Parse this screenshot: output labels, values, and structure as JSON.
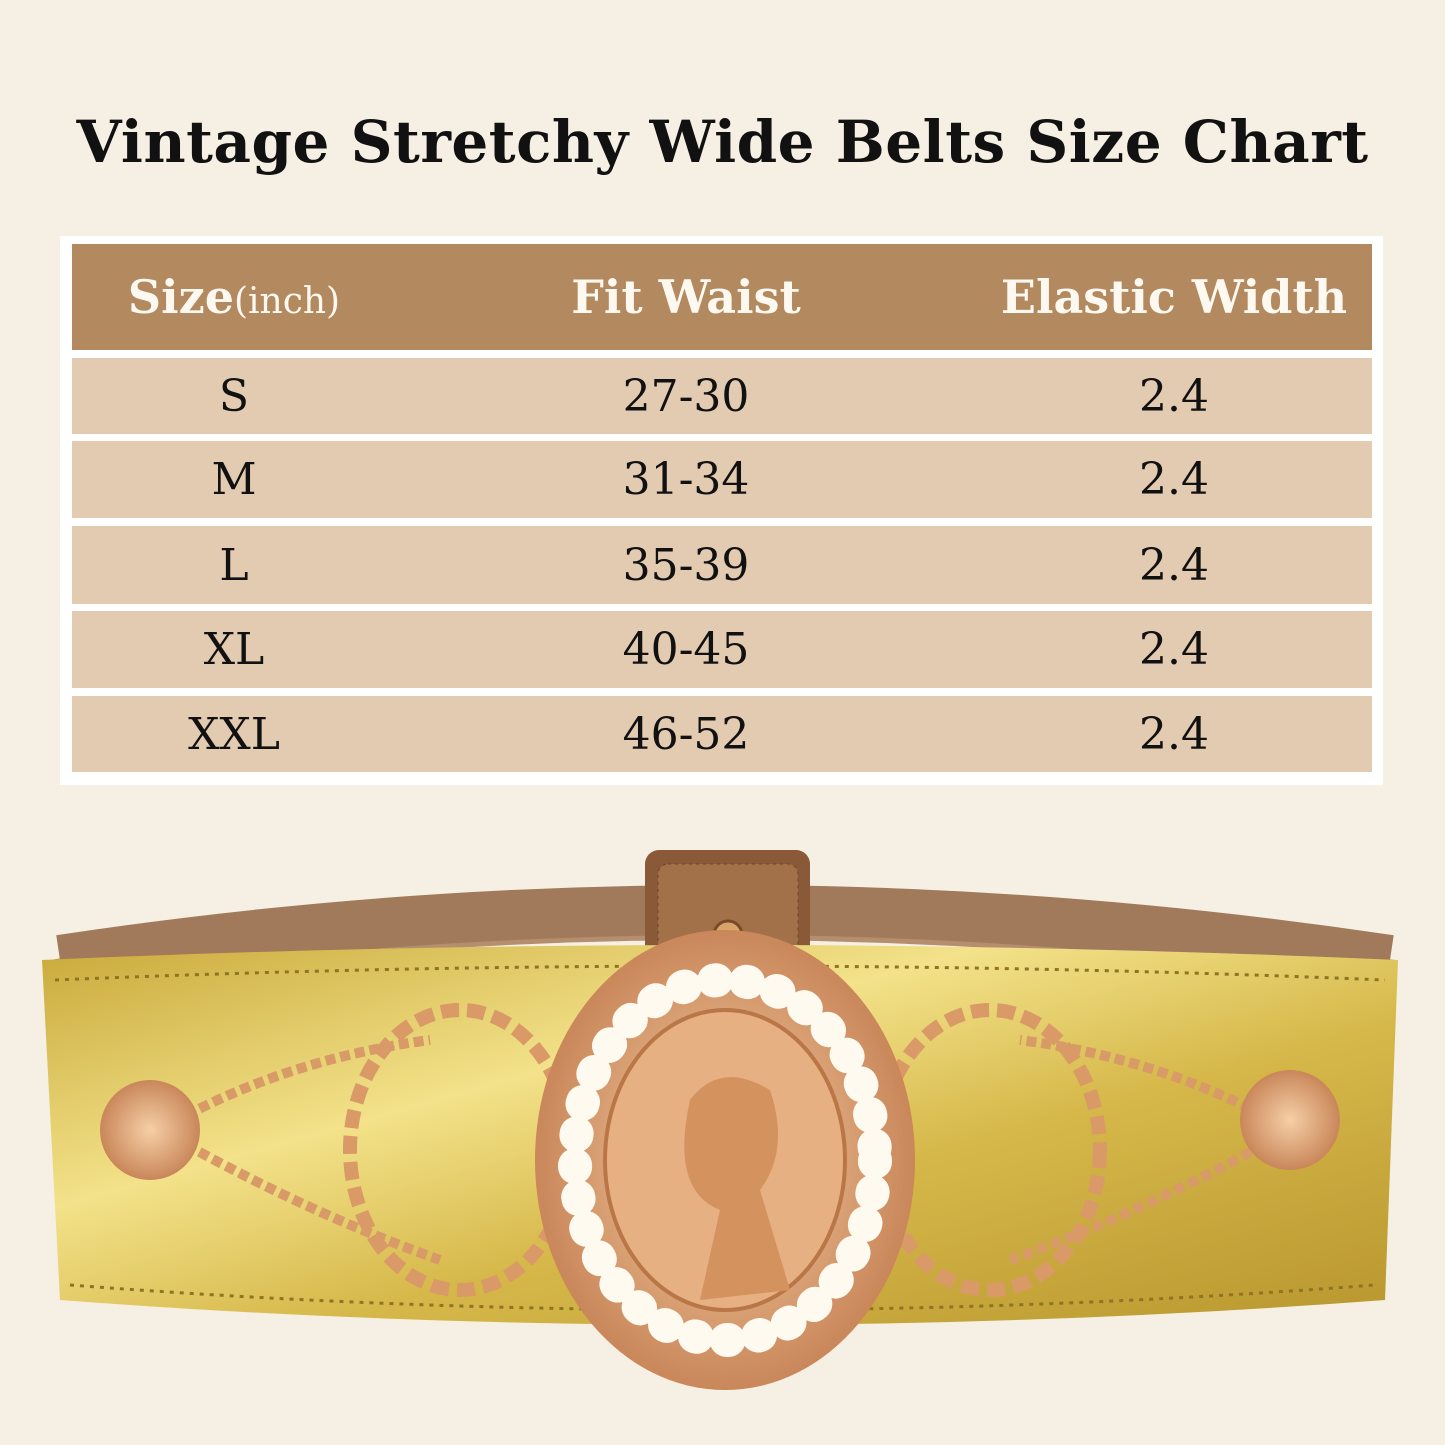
{
  "title": "Vintage Stretchy Wide Belts Size Chart",
  "table": {
    "headers": {
      "size": "Size",
      "size_unit": "(inch)",
      "fit_waist": "Fit Waist",
      "elastic_width": "Elastic Width"
    },
    "rows": [
      {
        "size": "S",
        "fit_waist": "27-30",
        "elastic_width": "2.4"
      },
      {
        "size": "M",
        "fit_waist": "31-34",
        "elastic_width": "2.4"
      },
      {
        "size": "L",
        "fit_waist": "35-39",
        "elastic_width": "2.4"
      },
      {
        "size": "XL",
        "fit_waist": "40-45",
        "elastic_width": "2.4"
      },
      {
        "size": "XXL",
        "fit_waist": "46-52",
        "elastic_width": "2.4"
      }
    ]
  },
  "colors": {
    "background": "#f6efe3",
    "header": "#b3895f",
    "row": "#e3cbb2",
    "gold": "#d9bb4a",
    "buckle": "#e0a77a"
  }
}
